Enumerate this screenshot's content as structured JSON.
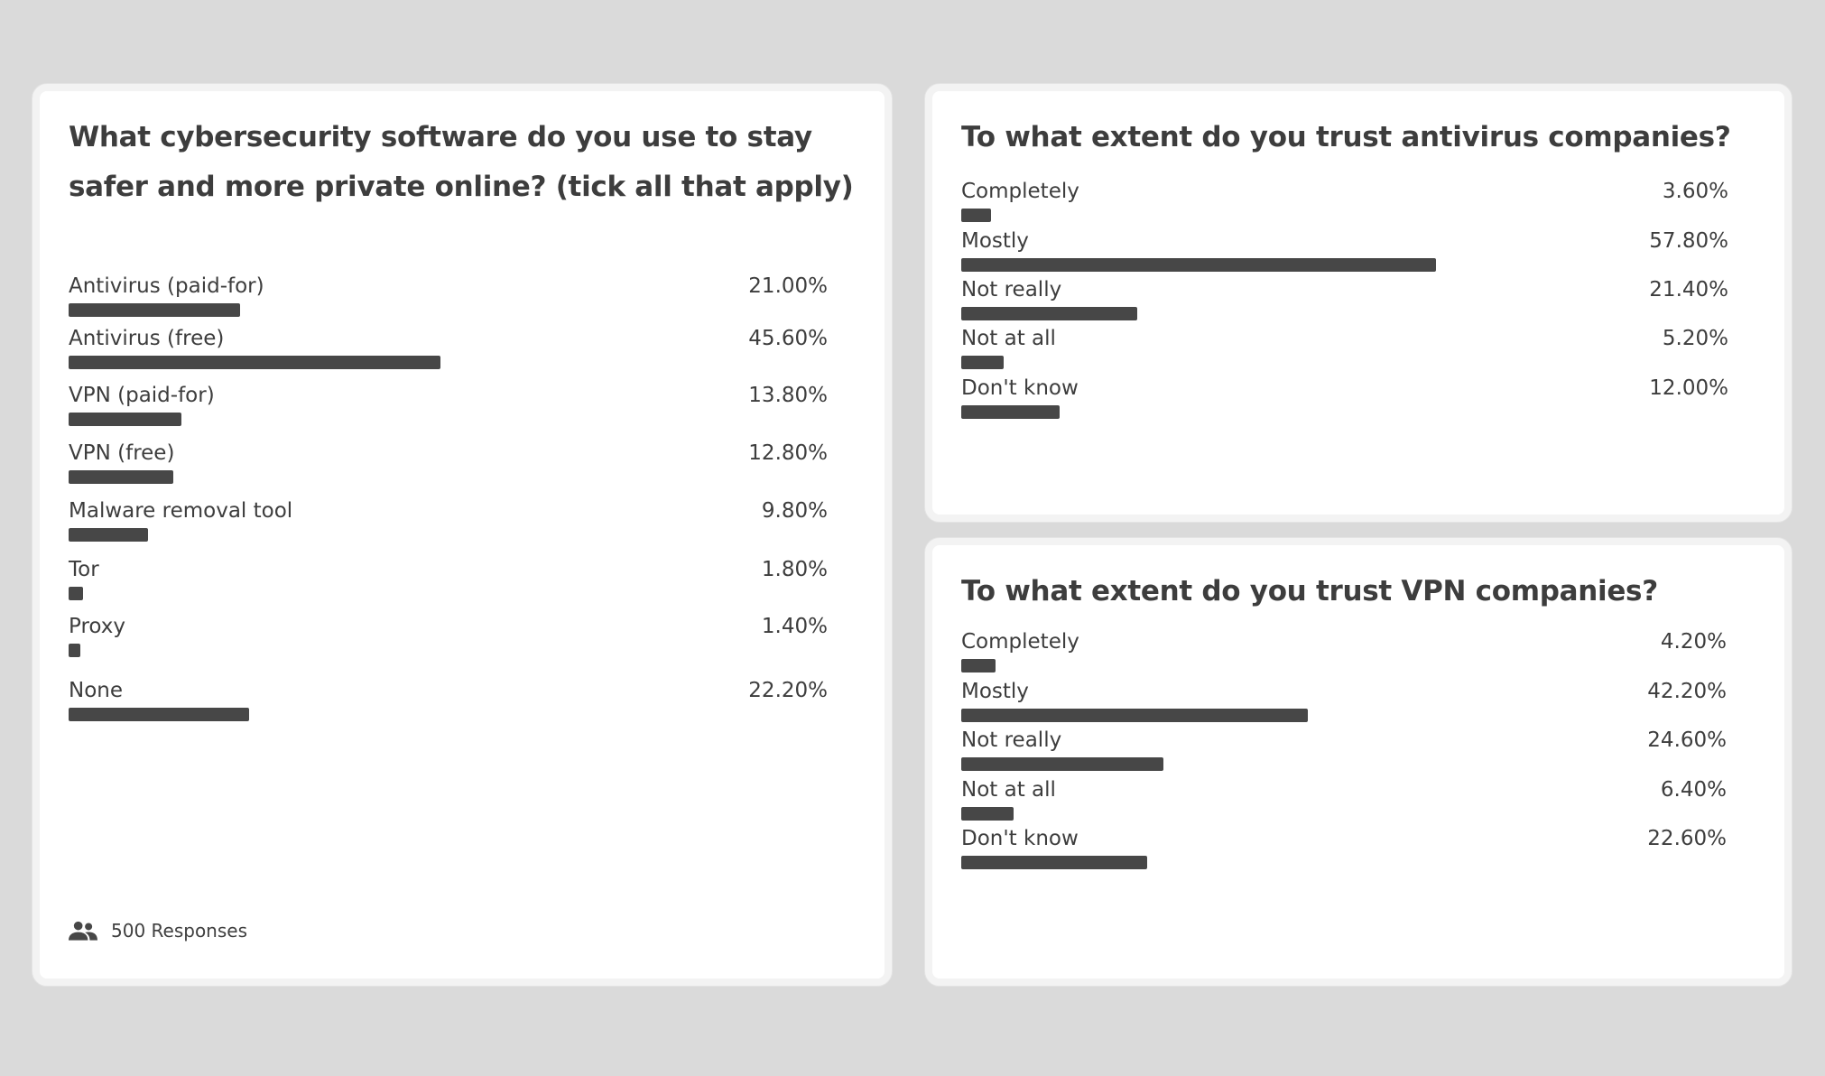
{
  "colors": {
    "background": "#dadada",
    "card": "#ffffff",
    "bar": "#474747",
    "text": "#3d3d3d"
  },
  "chart_data": [
    {
      "type": "bar",
      "orientation": "horizontal",
      "title": "What cybersecurity software do you use to stay safer and more private online? (tick all that apply)",
      "categories": [
        "Antivirus (paid-for)",
        "Antivirus (free)",
        "VPN (paid-for)",
        "VPN (free)",
        "Malware removal tool",
        "Tor",
        "Proxy",
        "None"
      ],
      "values": [
        21.0,
        45.6,
        13.8,
        12.8,
        9.8,
        1.8,
        1.4,
        22.2
      ],
      "value_labels": [
        "21.00%",
        "45.60%",
        "13.80%",
        "12.80%",
        "9.80%",
        "1.80%",
        "1.40%",
        "22.20%"
      ],
      "unit": "%",
      "xlim": [
        0,
        100
      ],
      "responses_icon": "people-icon",
      "responses_label": "500 Responses",
      "grid": false
    },
    {
      "type": "bar",
      "orientation": "horizontal",
      "title": "To what extent do you trust antivirus companies?",
      "categories": [
        "Completely",
        "Mostly",
        "Not really",
        "Not at all",
        "Don't know"
      ],
      "values": [
        3.6,
        57.8,
        21.4,
        5.2,
        12.0
      ],
      "value_labels": [
        "3.60%",
        "57.80%",
        "21.40%",
        "5.20%",
        "12.00%"
      ],
      "unit": "%",
      "xlim": [
        0,
        100
      ],
      "grid": false
    },
    {
      "type": "bar",
      "orientation": "horizontal",
      "title": "To what extent do you trust VPN companies?",
      "categories": [
        "Completely",
        "Mostly",
        "Not really",
        "Not at all",
        "Don't know"
      ],
      "values": [
        4.2,
        42.2,
        24.6,
        6.4,
        22.6
      ],
      "value_labels": [
        "4.20%",
        "42.20%",
        "24.60%",
        "6.40%",
        "22.60%"
      ],
      "unit": "%",
      "xlim": [
        0,
        100
      ],
      "grid": false
    }
  ]
}
